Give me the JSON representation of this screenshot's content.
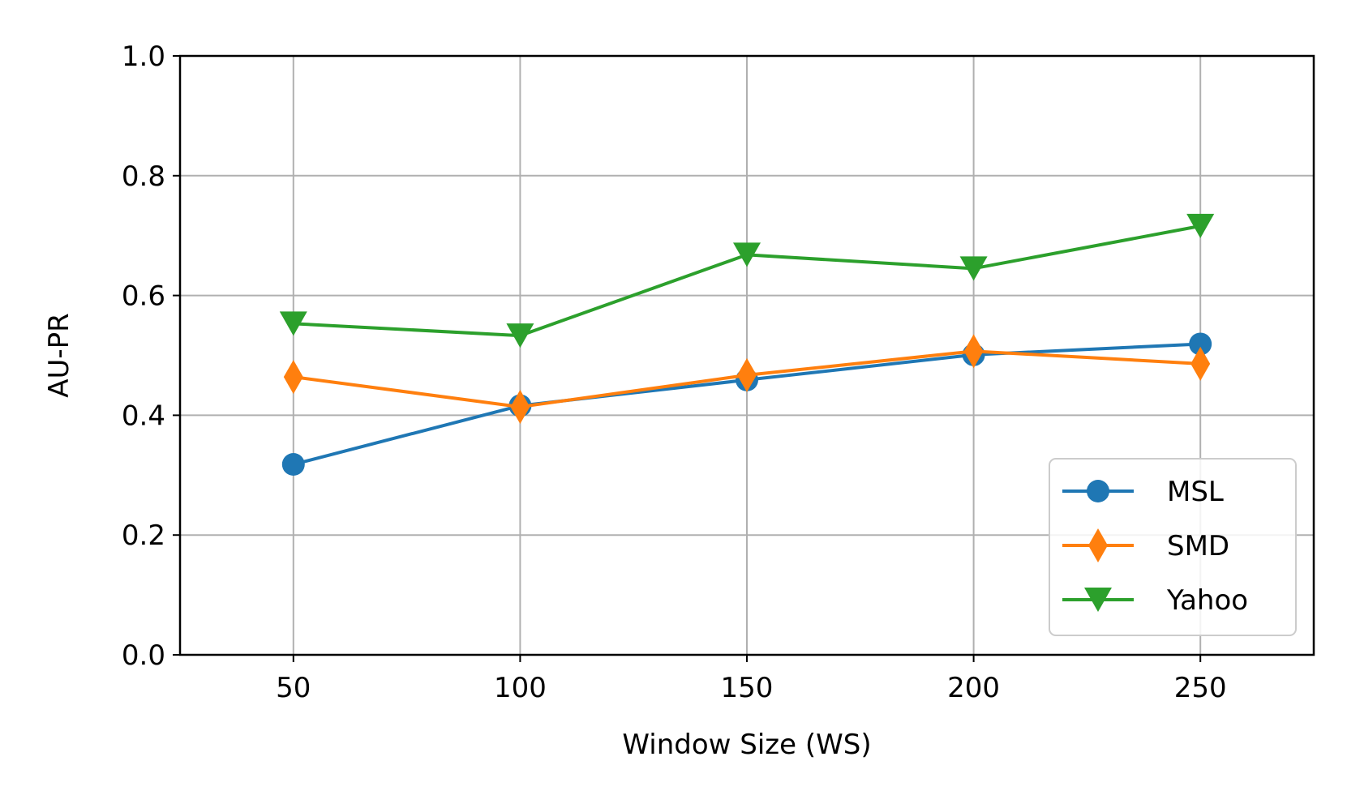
{
  "chart_data": {
    "type": "line",
    "title": "",
    "xlabel": "Window Size (WS)",
    "ylabel": "AU-PR",
    "x": [
      50,
      100,
      150,
      200,
      250
    ],
    "xlim": [
      25,
      275
    ],
    "ylim": [
      0.0,
      1.0
    ],
    "xticks": [
      "50",
      "100",
      "150",
      "200",
      "250"
    ],
    "yticks": [
      "0.0",
      "0.2",
      "0.4",
      "0.6",
      "0.8",
      "1.0"
    ],
    "grid": true,
    "legend_position": "lower-right",
    "series": [
      {
        "name": "MSL",
        "values": [
          0.318,
          0.416,
          0.459,
          0.501,
          0.519
        ],
        "color": "#1f77b4",
        "marker": "circle"
      },
      {
        "name": "SMD",
        "values": [
          0.464,
          0.414,
          0.467,
          0.507,
          0.486
        ],
        "color": "#ff7f0e",
        "marker": "diamond"
      },
      {
        "name": "Yahoo",
        "values": [
          0.553,
          0.533,
          0.668,
          0.645,
          0.716
        ],
        "color": "#2ca02c",
        "marker": "triangle-down"
      }
    ]
  }
}
